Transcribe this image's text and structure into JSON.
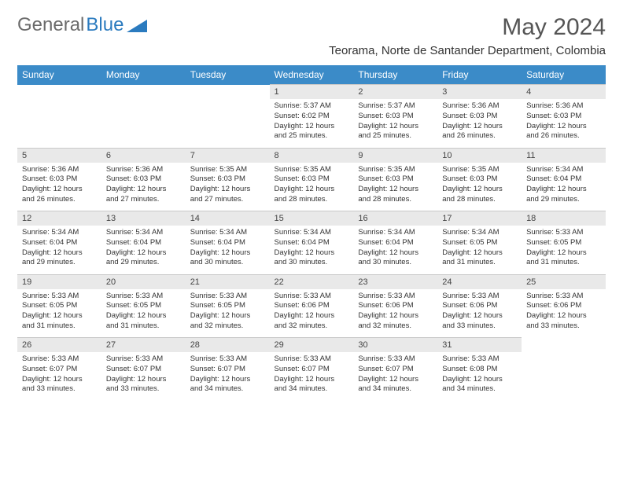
{
  "brand": {
    "part1": "General",
    "part2": "Blue"
  },
  "title": "May 2024",
  "location": "Teorama, Norte de Santander Department, Colombia",
  "colors": {
    "header_bg": "#3b8bc8",
    "header_text": "#ffffff",
    "daynum_bg": "#e9e9e9",
    "brand_gray": "#6b6b6b",
    "brand_blue": "#2b7bbf"
  },
  "weekdays": [
    "Sunday",
    "Monday",
    "Tuesday",
    "Wednesday",
    "Thursday",
    "Friday",
    "Saturday"
  ],
  "weeks": [
    [
      null,
      null,
      null,
      {
        "n": "1",
        "sr": "5:37 AM",
        "ss": "6:02 PM",
        "dl": "12 hours and 25 minutes."
      },
      {
        "n": "2",
        "sr": "5:37 AM",
        "ss": "6:03 PM",
        "dl": "12 hours and 25 minutes."
      },
      {
        "n": "3",
        "sr": "5:36 AM",
        "ss": "6:03 PM",
        "dl": "12 hours and 26 minutes."
      },
      {
        "n": "4",
        "sr": "5:36 AM",
        "ss": "6:03 PM",
        "dl": "12 hours and 26 minutes."
      }
    ],
    [
      {
        "n": "5",
        "sr": "5:36 AM",
        "ss": "6:03 PM",
        "dl": "12 hours and 26 minutes."
      },
      {
        "n": "6",
        "sr": "5:36 AM",
        "ss": "6:03 PM",
        "dl": "12 hours and 27 minutes."
      },
      {
        "n": "7",
        "sr": "5:35 AM",
        "ss": "6:03 PM",
        "dl": "12 hours and 27 minutes."
      },
      {
        "n": "8",
        "sr": "5:35 AM",
        "ss": "6:03 PM",
        "dl": "12 hours and 28 minutes."
      },
      {
        "n": "9",
        "sr": "5:35 AM",
        "ss": "6:03 PM",
        "dl": "12 hours and 28 minutes."
      },
      {
        "n": "10",
        "sr": "5:35 AM",
        "ss": "6:03 PM",
        "dl": "12 hours and 28 minutes."
      },
      {
        "n": "11",
        "sr": "5:34 AM",
        "ss": "6:04 PM",
        "dl": "12 hours and 29 minutes."
      }
    ],
    [
      {
        "n": "12",
        "sr": "5:34 AM",
        "ss": "6:04 PM",
        "dl": "12 hours and 29 minutes."
      },
      {
        "n": "13",
        "sr": "5:34 AM",
        "ss": "6:04 PM",
        "dl": "12 hours and 29 minutes."
      },
      {
        "n": "14",
        "sr": "5:34 AM",
        "ss": "6:04 PM",
        "dl": "12 hours and 30 minutes."
      },
      {
        "n": "15",
        "sr": "5:34 AM",
        "ss": "6:04 PM",
        "dl": "12 hours and 30 minutes."
      },
      {
        "n": "16",
        "sr": "5:34 AM",
        "ss": "6:04 PM",
        "dl": "12 hours and 30 minutes."
      },
      {
        "n": "17",
        "sr": "5:34 AM",
        "ss": "6:05 PM",
        "dl": "12 hours and 31 minutes."
      },
      {
        "n": "18",
        "sr": "5:33 AM",
        "ss": "6:05 PM",
        "dl": "12 hours and 31 minutes."
      }
    ],
    [
      {
        "n": "19",
        "sr": "5:33 AM",
        "ss": "6:05 PM",
        "dl": "12 hours and 31 minutes."
      },
      {
        "n": "20",
        "sr": "5:33 AM",
        "ss": "6:05 PM",
        "dl": "12 hours and 31 minutes."
      },
      {
        "n": "21",
        "sr": "5:33 AM",
        "ss": "6:05 PM",
        "dl": "12 hours and 32 minutes."
      },
      {
        "n": "22",
        "sr": "5:33 AM",
        "ss": "6:06 PM",
        "dl": "12 hours and 32 minutes."
      },
      {
        "n": "23",
        "sr": "5:33 AM",
        "ss": "6:06 PM",
        "dl": "12 hours and 32 minutes."
      },
      {
        "n": "24",
        "sr": "5:33 AM",
        "ss": "6:06 PM",
        "dl": "12 hours and 33 minutes."
      },
      {
        "n": "25",
        "sr": "5:33 AM",
        "ss": "6:06 PM",
        "dl": "12 hours and 33 minutes."
      }
    ],
    [
      {
        "n": "26",
        "sr": "5:33 AM",
        "ss": "6:07 PM",
        "dl": "12 hours and 33 minutes."
      },
      {
        "n": "27",
        "sr": "5:33 AM",
        "ss": "6:07 PM",
        "dl": "12 hours and 33 minutes."
      },
      {
        "n": "28",
        "sr": "5:33 AM",
        "ss": "6:07 PM",
        "dl": "12 hours and 34 minutes."
      },
      {
        "n": "29",
        "sr": "5:33 AM",
        "ss": "6:07 PM",
        "dl": "12 hours and 34 minutes."
      },
      {
        "n": "30",
        "sr": "5:33 AM",
        "ss": "6:07 PM",
        "dl": "12 hours and 34 minutes."
      },
      {
        "n": "31",
        "sr": "5:33 AM",
        "ss": "6:08 PM",
        "dl": "12 hours and 34 minutes."
      },
      null
    ]
  ],
  "labels": {
    "sunrise": "Sunrise:",
    "sunset": "Sunset:",
    "daylight": "Daylight:"
  }
}
